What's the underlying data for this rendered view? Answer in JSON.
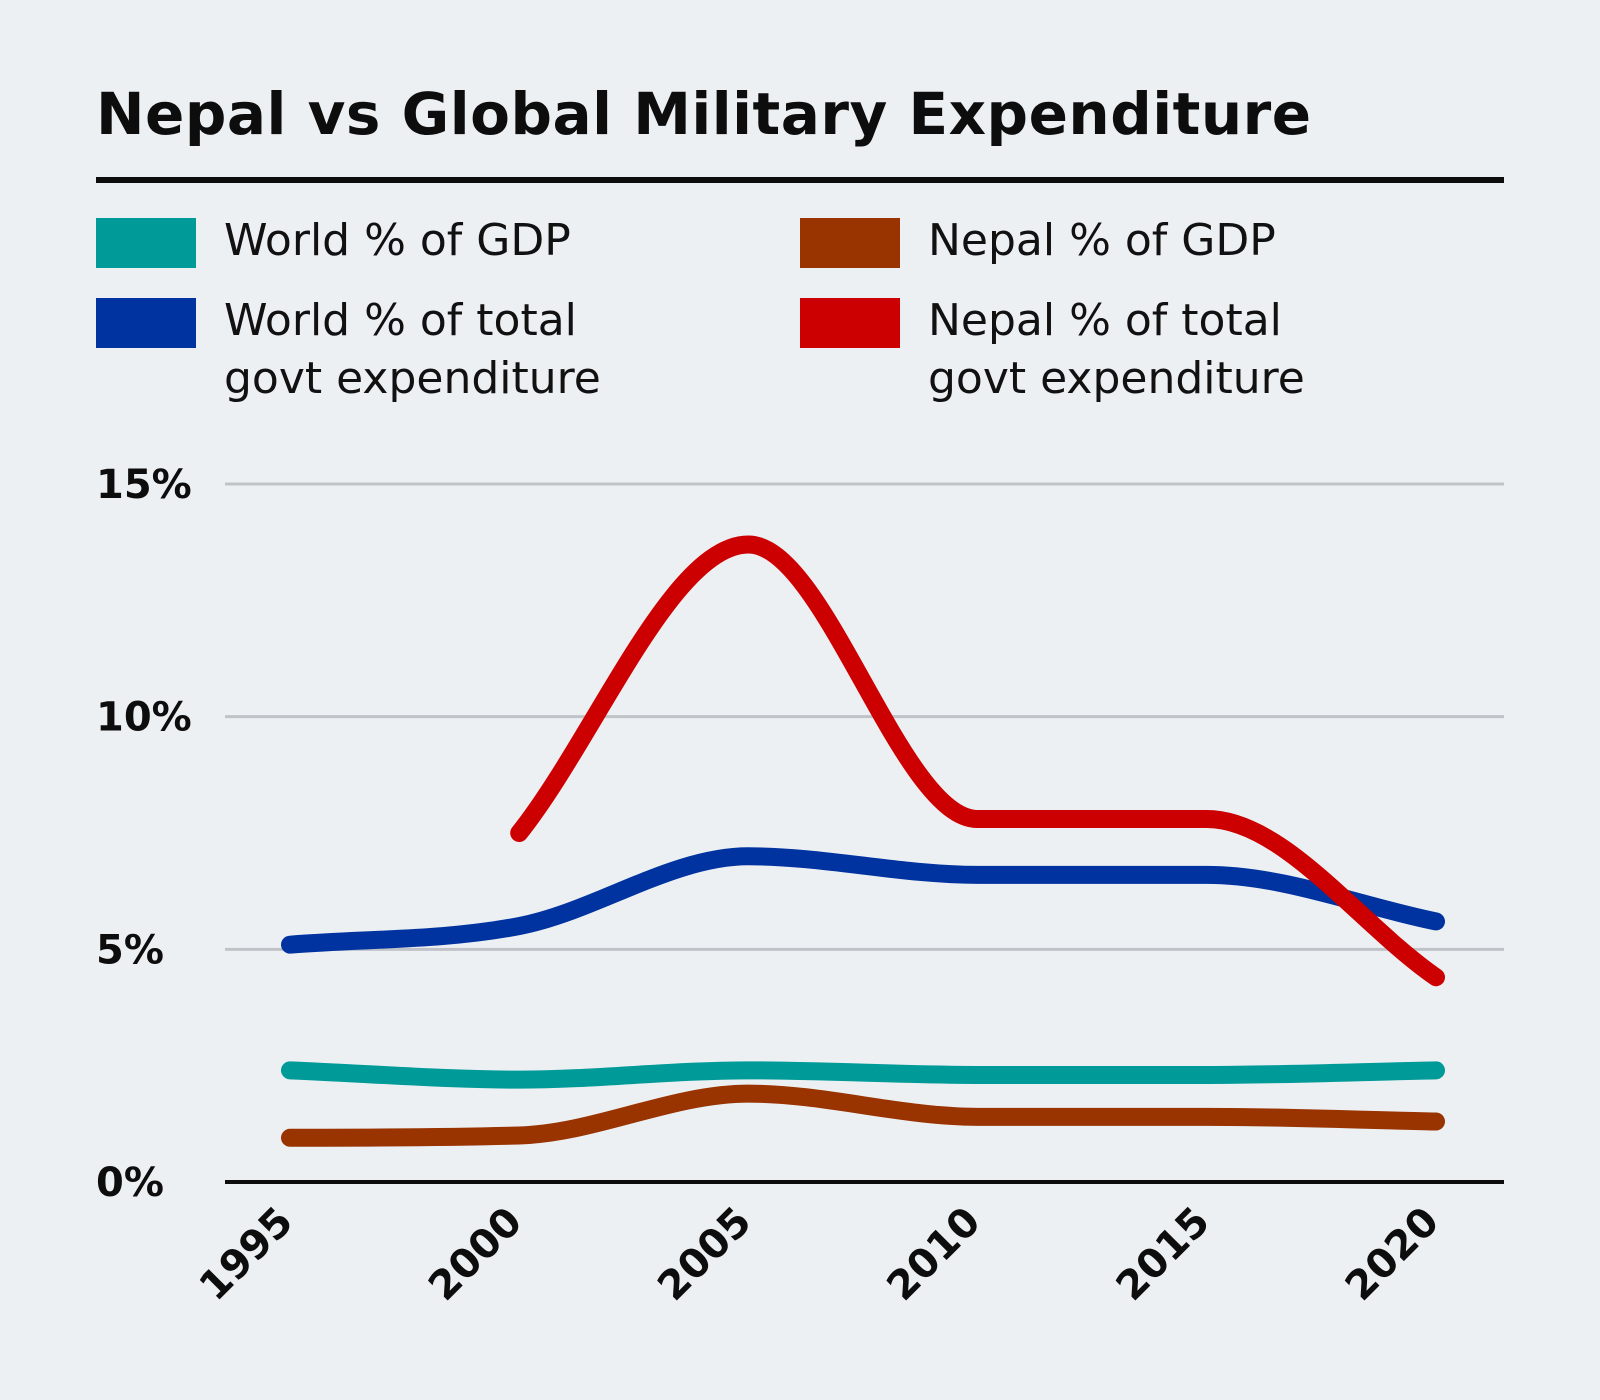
{
  "title": "Nepal vs Global Military Expenditure",
  "legend": [
    {
      "label": "World % of GDP",
      "color": "#009a98"
    },
    {
      "label": "Nepal % of GDP",
      "color": "#993300"
    },
    {
      "label": "World % of total\ngovt expenditure",
      "color": "#0033a0"
    },
    {
      "label": "Nepal % of total\ngovt expenditure",
      "color": "#cc0000"
    }
  ],
  "chart_data": {
    "type": "line",
    "x": [
      1995,
      2000,
      2005,
      2010,
      2015,
      2020
    ],
    "x_tick_labels": [
      "1995",
      "2000",
      "2005",
      "2010",
      "2015",
      "2020"
    ],
    "y_tick_labels": [
      "0%",
      "5%",
      "10%",
      "15%"
    ],
    "y_ticks": [
      0,
      5,
      10,
      15
    ],
    "ylim": [
      0,
      15
    ],
    "grid": true,
    "legend_position": "top",
    "series": [
      {
        "name": "World % of GDP",
        "color": "#009a98",
        "x": [
          1995,
          2000,
          2005,
          2010,
          2015,
          2020
        ],
        "values": [
          2.4,
          2.2,
          2.4,
          2.3,
          2.3,
          2.4
        ]
      },
      {
        "name": "Nepal % of GDP",
        "color": "#993300",
        "x": [
          1995,
          2000,
          2005,
          2010,
          2015,
          2020
        ],
        "values": [
          0.95,
          1.0,
          1.9,
          1.4,
          1.4,
          1.3
        ]
      },
      {
        "name": "World % of total govt expenditure",
        "color": "#0033a0",
        "x": [
          1995,
          2000,
          2005,
          2010,
          2015,
          2020
        ],
        "values": [
          5.1,
          5.5,
          7.0,
          6.6,
          6.6,
          5.6
        ]
      },
      {
        "name": "Nepal % of total govt expenditure",
        "color": "#cc0000",
        "x": [
          2000,
          2005,
          2010,
          2015,
          2020
        ],
        "values": [
          7.5,
          13.7,
          7.8,
          7.8,
          4.4
        ]
      }
    ]
  }
}
